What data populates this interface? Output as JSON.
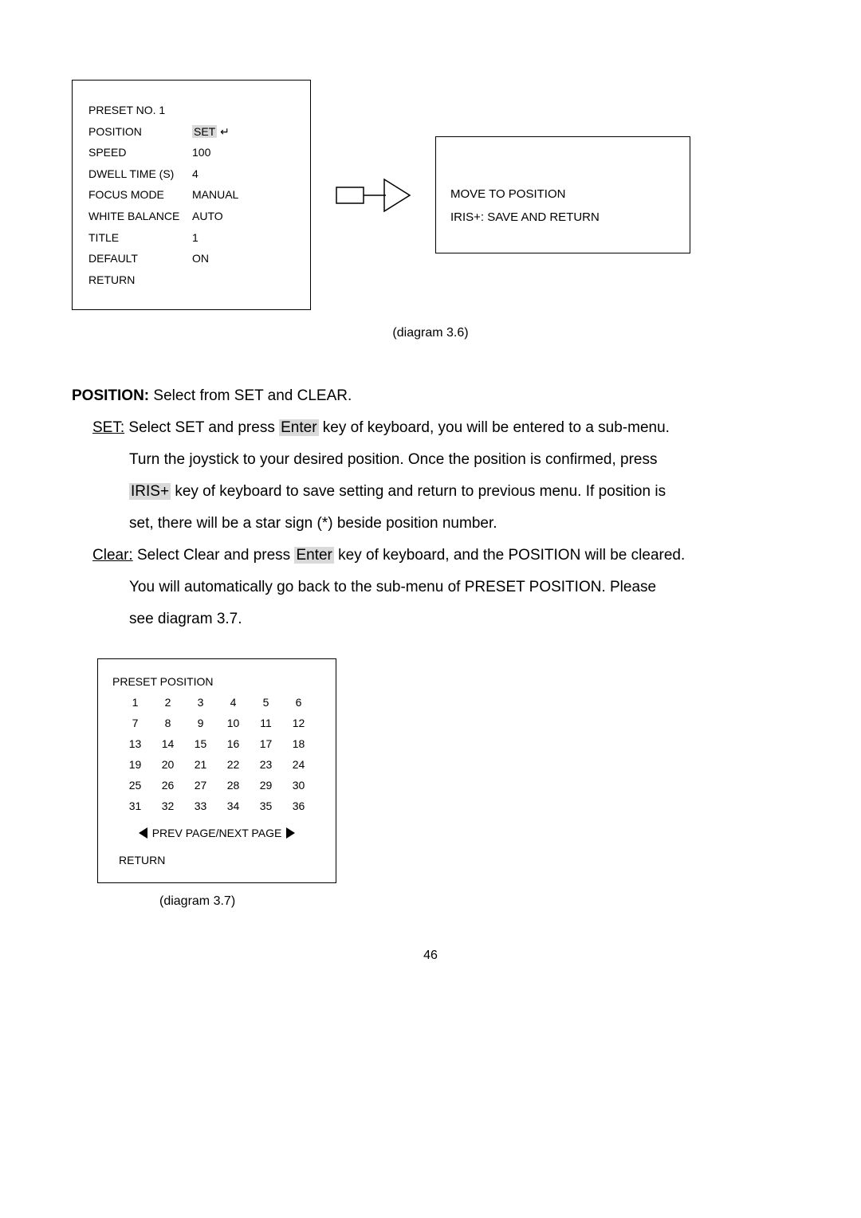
{
  "menu": {
    "header": "PRESET NO. 1",
    "rows": [
      {
        "label": "POSITION",
        "value": "SET",
        "highlight": true,
        "enterSymbol": true
      },
      {
        "label": "SPEED",
        "value": "100"
      },
      {
        "label": "DWELL TIME (S)",
        "value": "4"
      },
      {
        "label": "FOCUS MODE",
        "value": "MANUAL"
      },
      {
        "label": "WHITE BALANCE",
        "value": "AUTO"
      },
      {
        "label": "TITLE",
        "value": "1"
      },
      {
        "label": "DEFAULT",
        "value": "ON"
      },
      {
        "label": "RETURN",
        "value": ""
      }
    ]
  },
  "callout": {
    "line1": "MOVE TO POSITION",
    "line2": "IRIS+: SAVE AND RETURN"
  },
  "captions": {
    "d36": "(diagram 3.6)",
    "d37": "(diagram 3.7)"
  },
  "body": {
    "position_label": "POSITION:",
    "position_text": " Select from SET and CLEAR.",
    "set_label": "SET:",
    "set_l1a": " Select SET and press ",
    "enter": "Enter",
    "set_l1b": " key of keyboard, you will be entered to a sub-menu.",
    "set_l2": "Turn the joystick to your desired position. Once the position is confirmed, press",
    "iris": "IRIS+",
    "set_l3b": " key of keyboard to save setting and return to previous menu. If position is",
    "set_l4": "set, there will be a star sign (*) beside position number.",
    "clear_label": "Clear:",
    "clear_l1a": " Select Clear and press ",
    "clear_l1b": " key of keyboard, and the POSITION will be cleared.",
    "clear_l2": "You will automatically go back to the sub-menu of PRESET POSITION. Please",
    "clear_l3": "see diagram 3.7."
  },
  "grid": {
    "title": "PRESET POSITION",
    "cells": [
      "1",
      "2",
      "3",
      "4",
      "5",
      "6",
      "7",
      "8",
      "9",
      "10",
      "11",
      "12",
      "13",
      "14",
      "15",
      "16",
      "17",
      "18",
      "19",
      "20",
      "21",
      "22",
      "23",
      "24",
      "25",
      "26",
      "27",
      "28",
      "29",
      "30",
      "31",
      "32",
      "33",
      "34",
      "35",
      "36"
    ],
    "nav": "PREV PAGE/NEXT PAGE",
    "return": "RETURN"
  },
  "pageNumber": "46"
}
